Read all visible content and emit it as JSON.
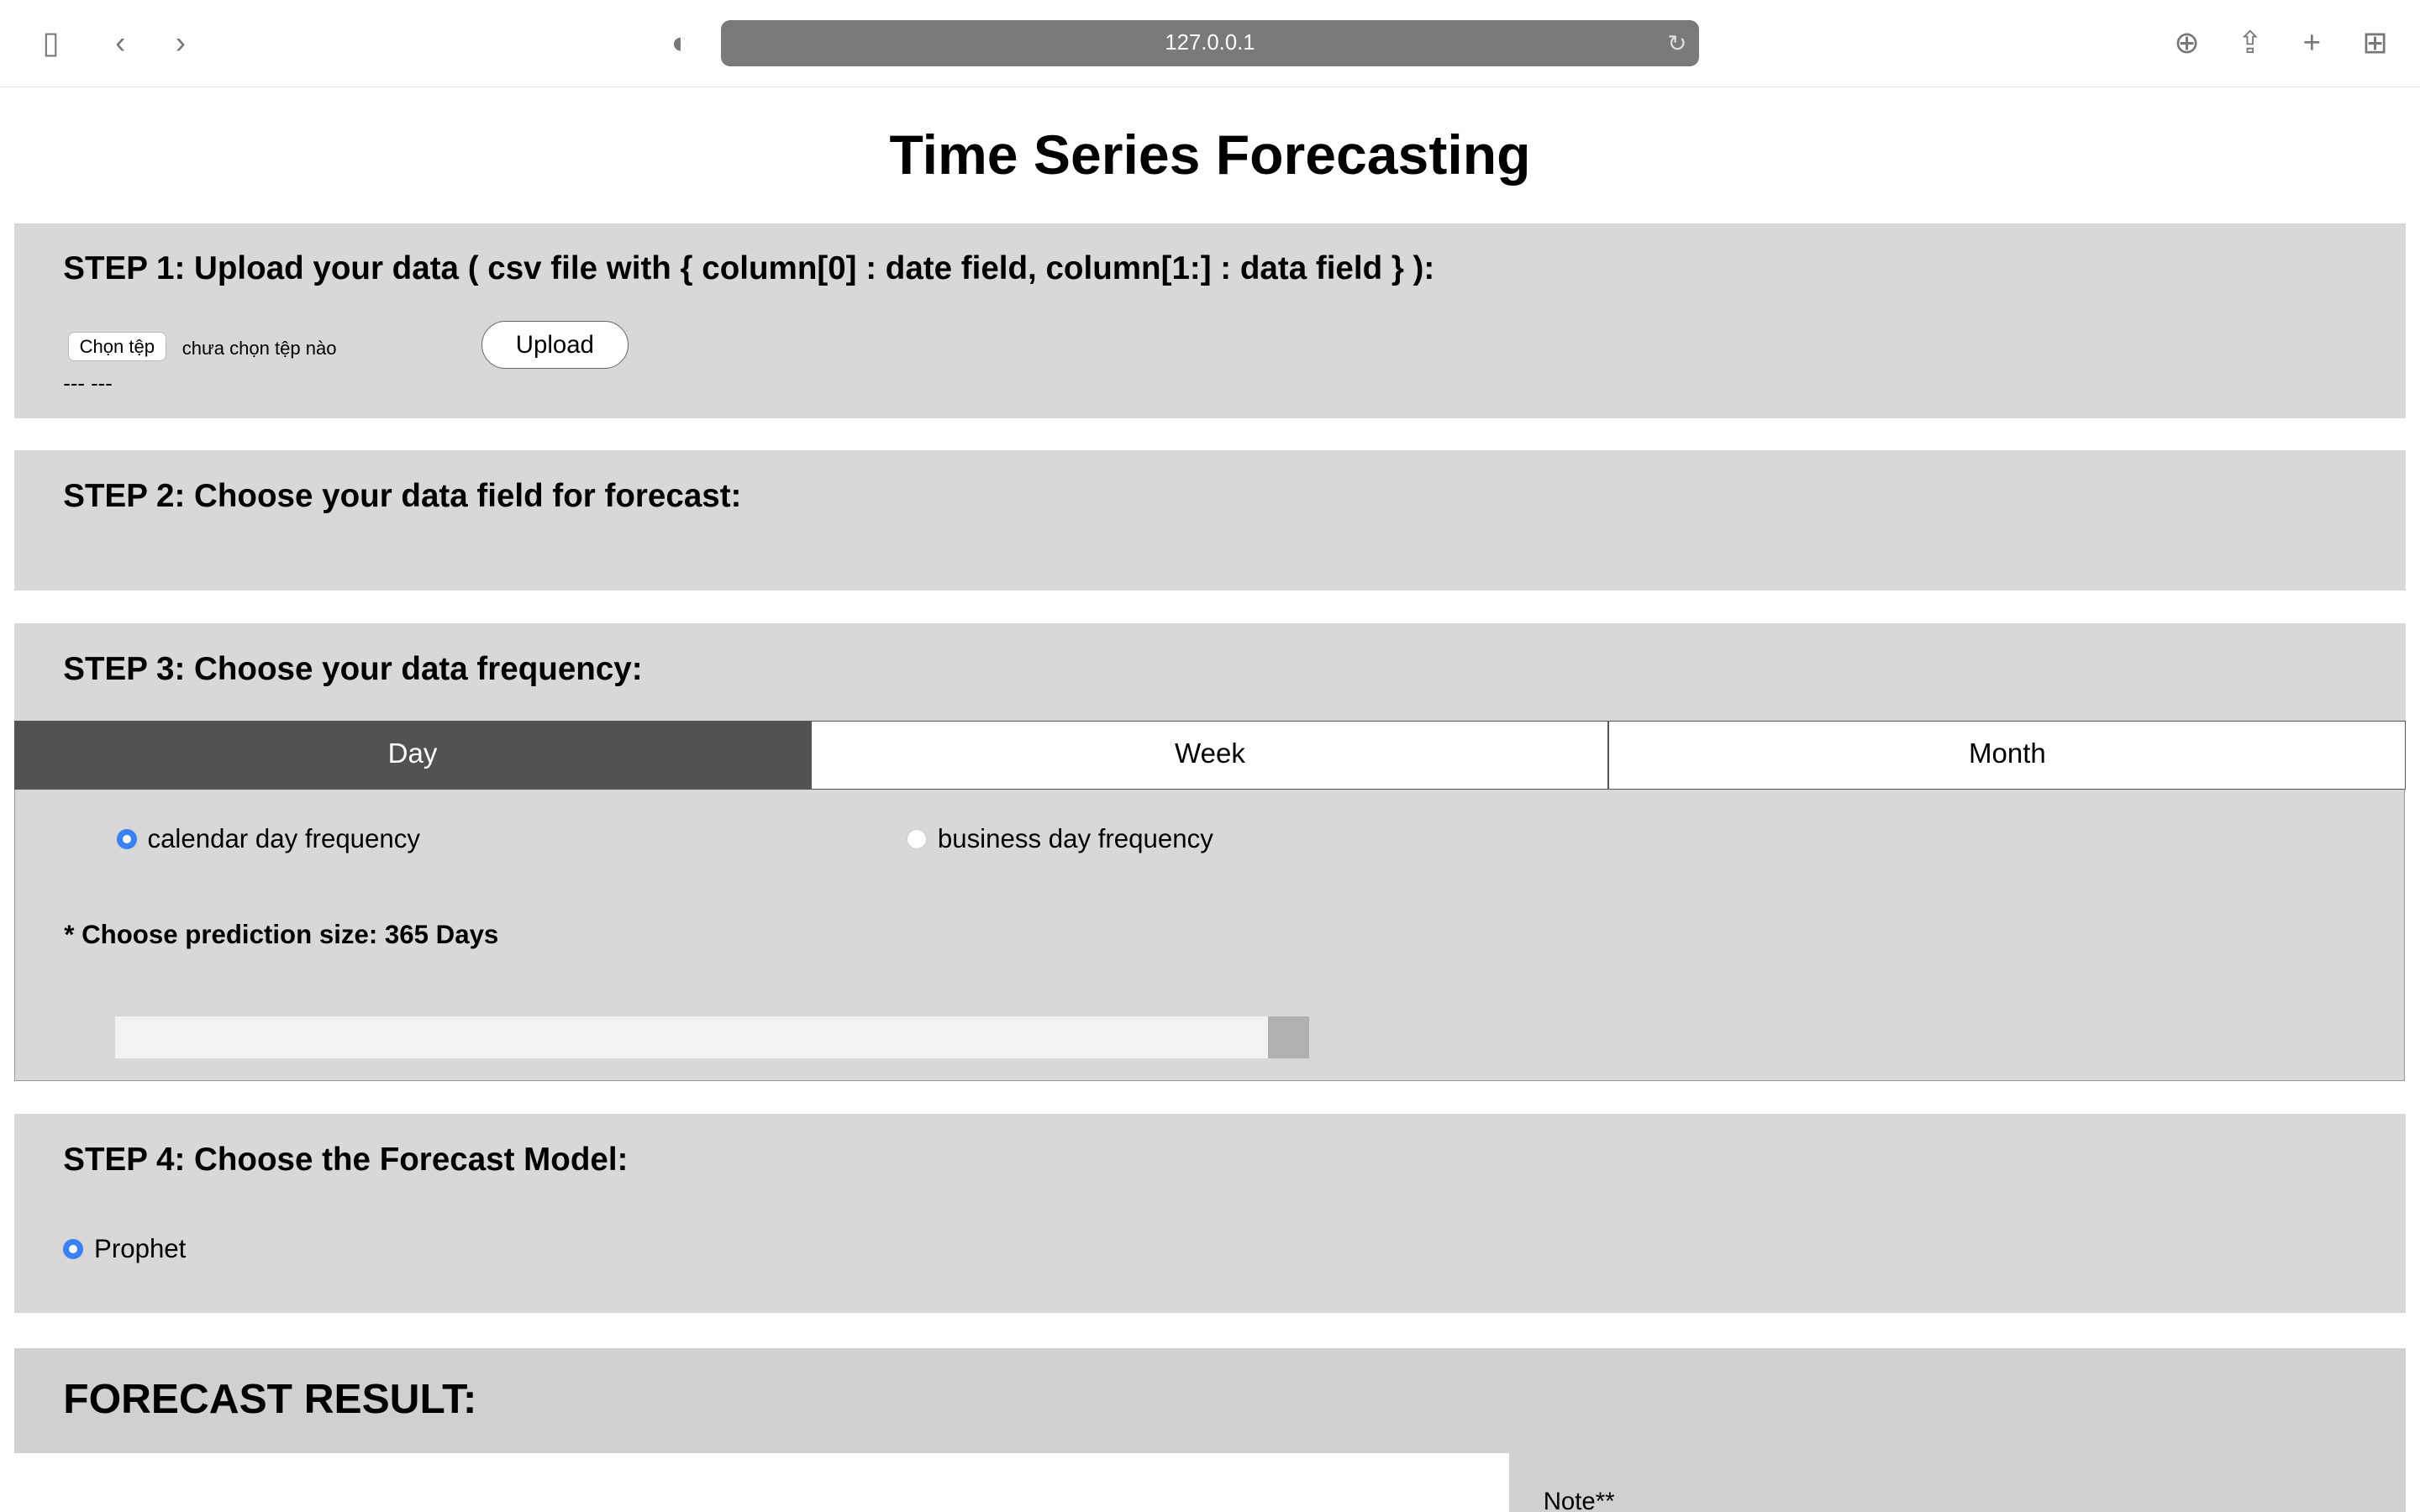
{
  "browser": {
    "url": "127.0.0.1"
  },
  "page": {
    "title": "Time Series Forecasting"
  },
  "step1": {
    "heading": "STEP 1: Upload your data ( csv file with { column[0] : date field, column[1:] : data field } ):",
    "choose_file": "Chọn tệp",
    "no_file": "chưa chọn tệp nào",
    "upload": "Upload",
    "status": "--- ---"
  },
  "step2": {
    "heading": "STEP 2: Choose your data field for forecast:"
  },
  "step3": {
    "heading": "STEP 3: Choose your data frequency:",
    "tabs": [
      {
        "label": "Day",
        "active": true
      },
      {
        "label": "Week",
        "active": false
      },
      {
        "label": "Month",
        "active": false
      }
    ],
    "options": [
      {
        "label": "calendar day frequency",
        "checked": true
      },
      {
        "label": "business day frequency",
        "checked": false
      }
    ],
    "size_label": "* Choose prediction size: 365 Days",
    "slider_fraction": 1.0
  },
  "step4": {
    "heading": "STEP 4: Choose the Forecast Model:",
    "model": {
      "label": "Prophet",
      "checked": true
    }
  },
  "result": {
    "heading": "FORECAST RESULT:",
    "note": "Note**"
  },
  "colors": {
    "accent": "#3b82f6",
    "active_tab": "#525252",
    "section_bg": "#d9d7d8"
  }
}
